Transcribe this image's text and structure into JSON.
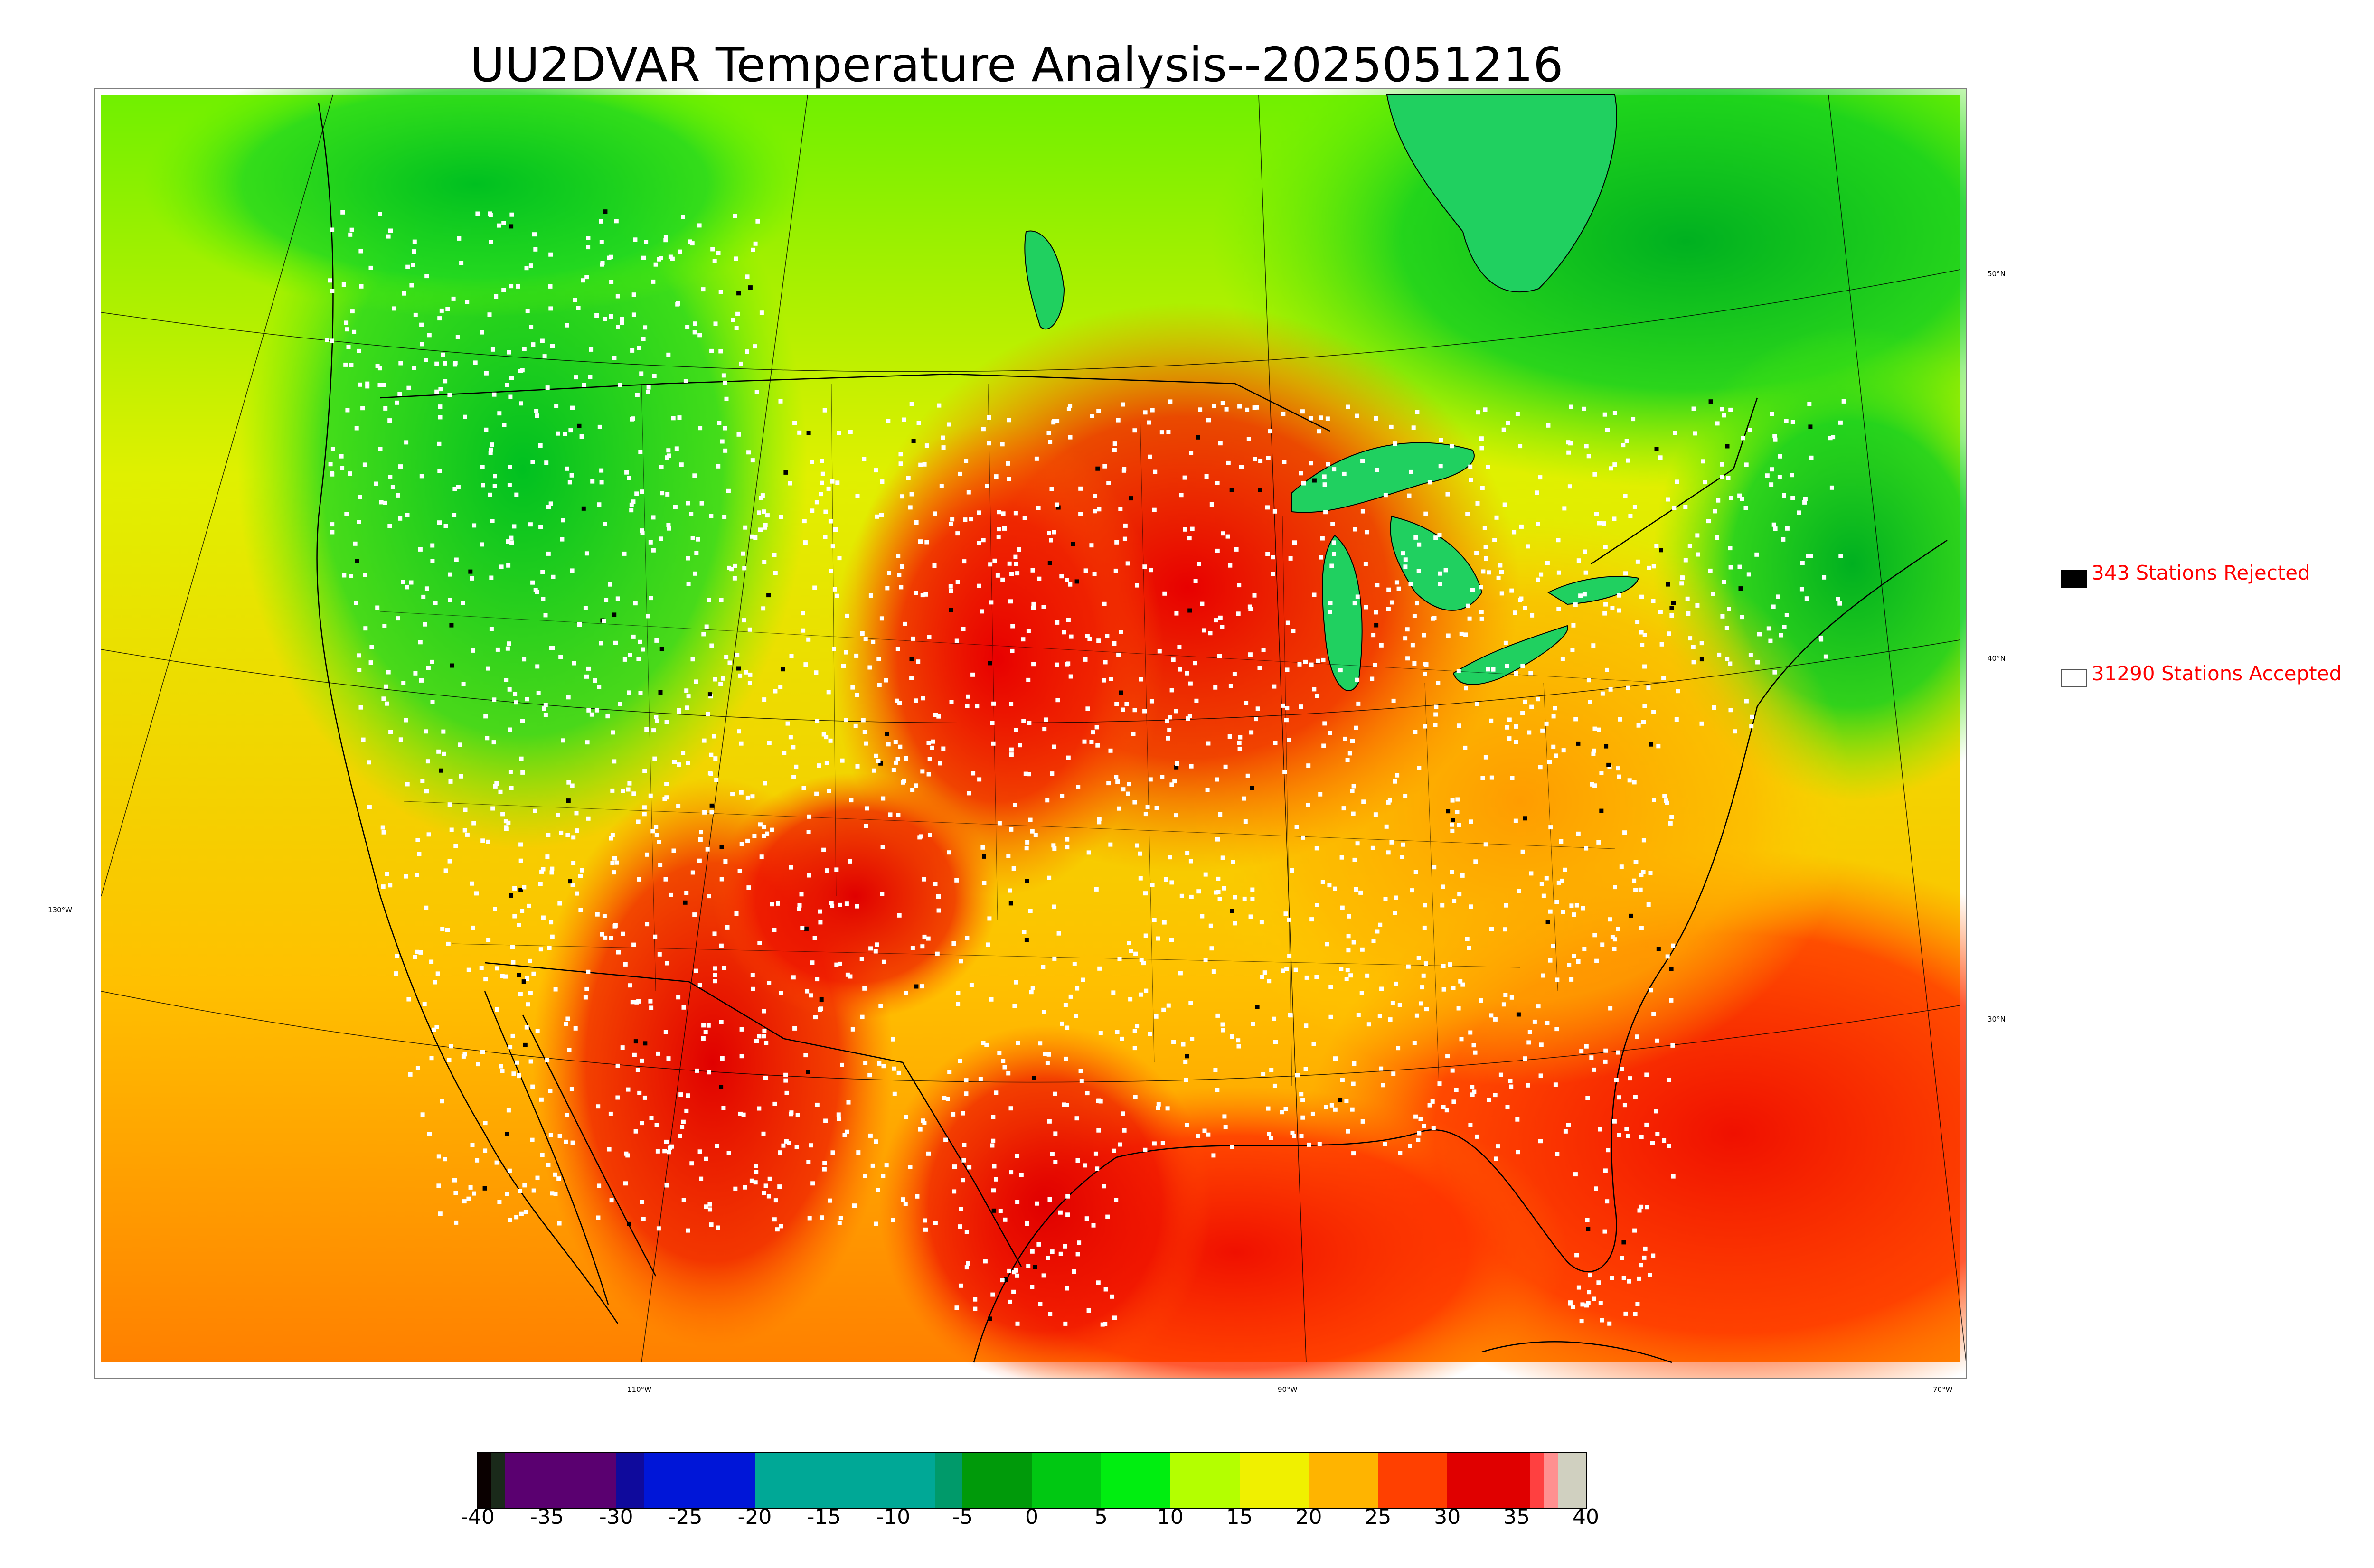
{
  "title": "UU2DVAR Temperature Analysis--2025051216",
  "legend": {
    "rejected": {
      "label": "343 Stations Rejected",
      "color": "#000000"
    },
    "accepted": {
      "label": "31290 Stations Accepted",
      "color": "#ffffff"
    }
  },
  "graticule": {
    "lat_labels": [
      "50°N",
      "40°N",
      "30°N"
    ],
    "lon_labels": [
      "130°W",
      "110°W",
      "90°W",
      "70°W"
    ]
  },
  "colorbar": {
    "ticks": [
      "-40",
      "-35",
      "-30",
      "-25",
      "-20",
      "-15",
      "-10",
      "-5",
      "0",
      "5",
      "10",
      "15",
      "20",
      "25",
      "30",
      "35",
      "40"
    ],
    "range": [
      -40,
      40
    ],
    "colors": [
      {
        "from": -40,
        "to": -39,
        "color": "#0a0000"
      },
      {
        "from": -39,
        "to": -38,
        "color": "#1a2a1a"
      },
      {
        "from": -38,
        "to": -30,
        "color": "#5a0070"
      },
      {
        "from": -30,
        "to": -28,
        "color": "#0f0a9c"
      },
      {
        "from": -28,
        "to": -20,
        "color": "#0016d8"
      },
      {
        "from": -20,
        "to": -7,
        "color": "#00a896"
      },
      {
        "from": -7,
        "to": -5,
        "color": "#009a6a"
      },
      {
        "from": -5,
        "to": 0,
        "color": "#009a0a"
      },
      {
        "from": 0,
        "to": 5,
        "color": "#00c812"
      },
      {
        "from": 5,
        "to": 10,
        "color": "#00ee10"
      },
      {
        "from": 10,
        "to": 15,
        "color": "#b4ff00"
      },
      {
        "from": 15,
        "to": 20,
        "color": "#f0f000"
      },
      {
        "from": 20,
        "to": 25,
        "color": "#ffb400"
      },
      {
        "from": 25,
        "to": 30,
        "color": "#ff4000"
      },
      {
        "from": 30,
        "to": 36,
        "color": "#e00000"
      },
      {
        "from": 36,
        "to": 37,
        "color": "#ff4040"
      },
      {
        "from": 37,
        "to": 38,
        "color": "#ff9090"
      },
      {
        "from": 38,
        "to": 40,
        "color": "#d0d0c0"
      }
    ]
  },
  "colors": {
    "cold": "#00c814",
    "cool": "#6ef000",
    "mild": "#e0f000",
    "warm": "#ffb000",
    "hot": "#ff5000",
    "very_hot": "#e80000",
    "lake": "#20d060",
    "station_accepted": "#ffffff",
    "station_rejected": "#000000"
  }
}
